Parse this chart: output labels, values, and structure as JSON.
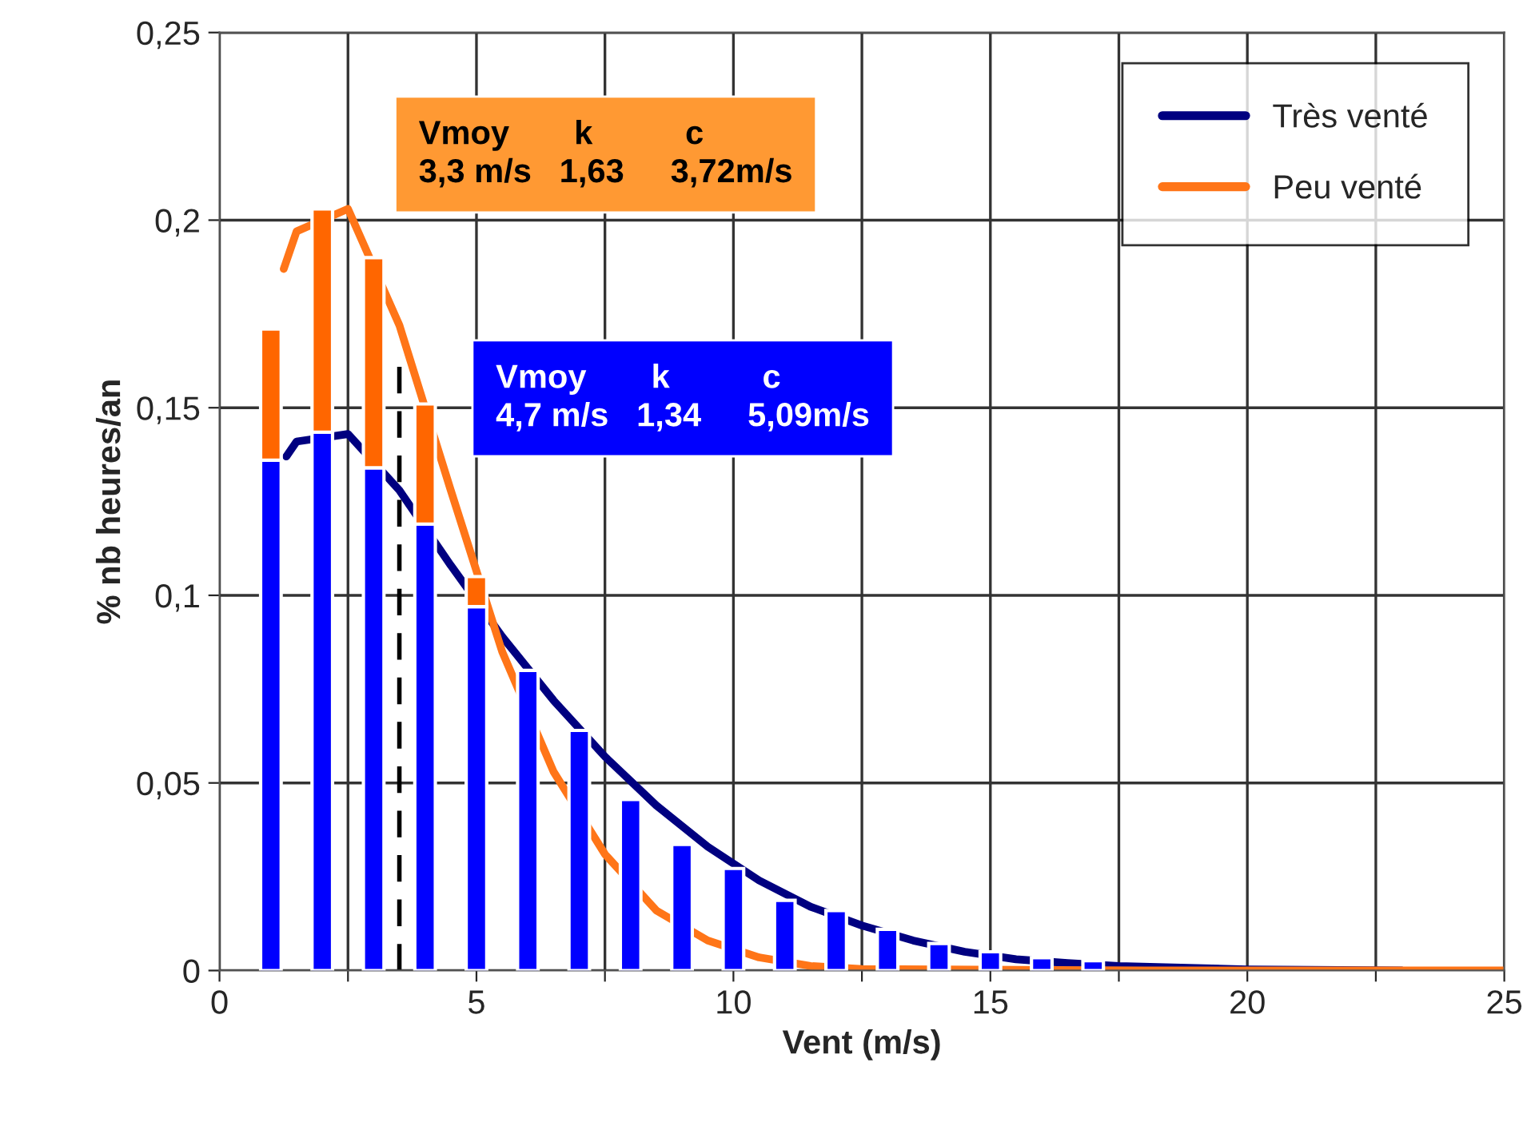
{
  "chart_data": {
    "type": "bar",
    "xlabel": "Vent (m/s)",
    "ylabel": "% nb heures/an",
    "xlim": [
      0,
      25
    ],
    "ylim": [
      0,
      0.25
    ],
    "xticks": [
      0,
      {
        "value": 2.5,
        "label": null
      },
      5,
      {
        "value": 7.5,
        "label": null
      },
      10,
      {
        "value": 12.5,
        "label": null
      },
      15,
      {
        "value": 17.5,
        "label": null
      },
      20,
      {
        "value": 22.5,
        "label": null
      },
      25
    ],
    "yticks": [
      0,
      {
        "value": 0.05,
        "label": "0,05"
      },
      {
        "value": 0.1,
        "label": "0,1"
      },
      {
        "value": 0.15,
        "label": "0,15"
      },
      {
        "value": 0.2,
        "label": "0,2"
      },
      {
        "value": 0.25,
        "label": "0,25"
      }
    ],
    "grid": true,
    "legend": "top right",
    "stacked": true,
    "series": [
      {
        "type": "line",
        "name": "Très venté",
        "color": "#000080",
        "x": [
          1.3,
          1.5,
          2.5,
          3.5,
          4.5,
          5.5,
          6.5,
          7.5,
          8.5,
          9.5,
          10.5,
          11.5,
          12.5,
          13.5,
          14.5,
          15.5,
          16.5,
          17.5,
          20,
          23
        ],
        "values": [
          0.137,
          0.141,
          0.143,
          0.128,
          0.108,
          0.089,
          0.072,
          0.057,
          0.044,
          0.033,
          0.024,
          0.017,
          0.012,
          0.008,
          0.005,
          0.003,
          0.002,
          0.0012,
          0.0003,
          0
        ]
      },
      {
        "type": "line",
        "name": "Peu venté",
        "color": "#ff7518",
        "x": [
          1.25,
          1.5,
          2.5,
          3.5,
          4.5,
          5.5,
          6.5,
          7.5,
          8.5,
          9.5,
          10.5,
          11.5,
          12.5,
          18,
          25
        ],
        "values": [
          0.187,
          0.197,
          0.203,
          0.172,
          0.128,
          0.085,
          0.053,
          0.031,
          0.016,
          0.008,
          0.0035,
          0.0012,
          0.0004,
          0,
          0
        ]
      },
      {
        "type": "line",
        "color": "#000000",
        "line_style": "dashed",
        "x": [
          3.5,
          3.5
        ],
        "values": [
          0,
          0.162
        ]
      },
      {
        "color": "#0000ff",
        "x": [
          1,
          2,
          3,
          4,
          5,
          6,
          7,
          8,
          9,
          10,
          11,
          12,
          13,
          14,
          15,
          16,
          17
        ],
        "values": [
          0.136,
          0.1435,
          0.134,
          0.119,
          0.097,
          0.08,
          0.064,
          0.0456,
          0.0336,
          0.0272,
          0.0187,
          0.016,
          0.011,
          0.0072,
          0.005,
          0.0034,
          0.0026
        ]
      },
      {
        "color": "#ff6600",
        "x": [
          1,
          2,
          3,
          4,
          5
        ],
        "values": [
          0.035,
          0.0595,
          0.056,
          0.032,
          0.008
        ]
      }
    ],
    "annotations": [
      "Vmoy       k          c\n3,3 m/s   1,63     3,72m/s",
      "Vmoy       k          c\n4,7 m/s   1,34     5,09m/s"
    ]
  }
}
